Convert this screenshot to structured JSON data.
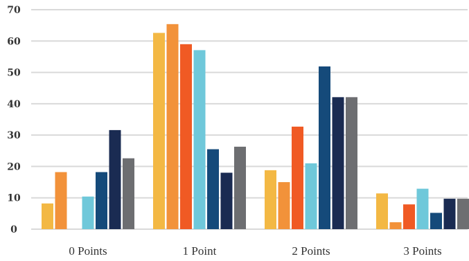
{
  "chart_data": {
    "type": "bar",
    "categories": [
      "0 Points",
      "1 Point",
      "2 Points",
      "3 Points"
    ],
    "series": [
      {
        "color": "#f3b844",
        "values": [
          8.2,
          62.6,
          18.8,
          11.4
        ]
      },
      {
        "color": "#f2923a",
        "values": [
          18.2,
          65.4,
          15.0,
          2.2
        ]
      },
      {
        "color": "#f05a24",
        "values": [
          0,
          59.0,
          32.7,
          7.9
        ]
      },
      {
        "color": "#6fc8da",
        "values": [
          10.4,
          57.1,
          21.0,
          12.9
        ]
      },
      {
        "color": "#154a7a",
        "values": [
          18.2,
          25.5,
          51.9,
          5.2
        ]
      },
      {
        "color": "#1a2b52",
        "values": [
          31.6,
          18.0,
          42.1,
          9.7
        ]
      },
      {
        "color": "#6d6e71",
        "values": [
          22.6,
          26.3,
          42.1,
          9.7
        ]
      }
    ],
    "title": "",
    "xlabel": "",
    "ylabel": "",
    "ylim": [
      0,
      70
    ],
    "yticks": [
      "0",
      "10",
      "20",
      "30",
      "40",
      "50",
      "60",
      "70"
    ],
    "grid": true,
    "legend": "none"
  }
}
